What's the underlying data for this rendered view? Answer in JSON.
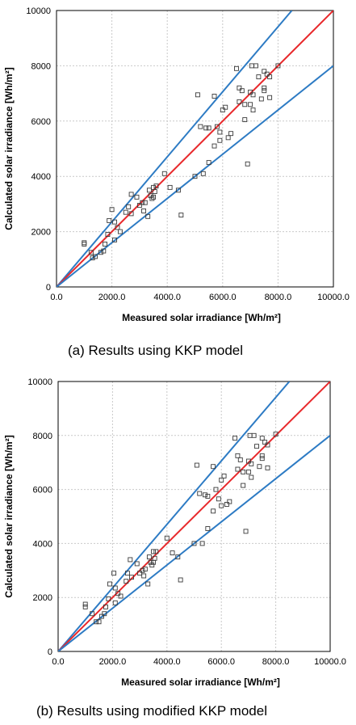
{
  "colors": {
    "red_line": "#e8282b",
    "blue_line": "#2d7bc4",
    "grid": "#c9c9c9",
    "marker": "#3a3a3a"
  },
  "chart_data": [
    {
      "type": "scatter",
      "title": "",
      "caption": "(a)  Results using KKP model",
      "xlabel": "Measured solar irradiance [Wh/m²]",
      "ylabel": "Calculated solar irradiance [Wh/m²]",
      "xlim": [
        0,
        10000
      ],
      "ylim": [
        0,
        10000
      ],
      "x_ticks": [
        "0.0",
        "2000.0",
        "4000.0",
        "6000.0",
        "8000.0",
        "10000.0"
      ],
      "y_ticks": [
        "0",
        "2000",
        "4000",
        "6000",
        "8000",
        "10000"
      ],
      "grid": true,
      "lines": [
        {
          "color": "blue",
          "points": [
            [
              0,
              0
            ],
            [
              8500,
              10000
            ]
          ]
        },
        {
          "color": "red",
          "points": [
            [
              0,
              0
            ],
            [
              10000,
              10000
            ]
          ]
        },
        {
          "color": "blue",
          "points": [
            [
              0,
              0
            ],
            [
              10000,
              8000
            ]
          ]
        }
      ],
      "points": [
        [
          1000,
          1600
        ],
        [
          1000,
          1550
        ],
        [
          1250,
          1250
        ],
        [
          1400,
          1100
        ],
        [
          1300,
          1050
        ],
        [
          1600,
          1250
        ],
        [
          1700,
          1300
        ],
        [
          1750,
          1550
        ],
        [
          1850,
          1900
        ],
        [
          1900,
          2400
        ],
        [
          2000,
          2800
        ],
        [
          2100,
          2350
        ],
        [
          2200,
          2150
        ],
        [
          2300,
          2000
        ],
        [
          2100,
          1700
        ],
        [
          2500,
          2700
        ],
        [
          2600,
          2900
        ],
        [
          2700,
          2650
        ],
        [
          2700,
          3350
        ],
        [
          2900,
          3250
        ],
        [
          3000,
          2950
        ],
        [
          3100,
          3050
        ],
        [
          3150,
          2750
        ],
        [
          3200,
          3050
        ],
        [
          3300,
          2550
        ],
        [
          3350,
          3500
        ],
        [
          3400,
          3300
        ],
        [
          3450,
          3200
        ],
        [
          3500,
          3600
        ],
        [
          3500,
          3250
        ],
        [
          3550,
          3450
        ],
        [
          3600,
          3650
        ],
        [
          3900,
          4100
        ],
        [
          4100,
          3600
        ],
        [
          4400,
          3500
        ],
        [
          4500,
          2600
        ],
        [
          5000,
          4000
        ],
        [
          5100,
          6950
        ],
        [
          5200,
          5800
        ],
        [
          5300,
          4100
        ],
        [
          5400,
          5750
        ],
        [
          5500,
          5750
        ],
        [
          5500,
          4500
        ],
        [
          5700,
          5100
        ],
        [
          5700,
          6900
        ],
        [
          5800,
          5800
        ],
        [
          5900,
          5600
        ],
        [
          5900,
          5300
        ],
        [
          6000,
          6400
        ],
        [
          6100,
          6500
        ],
        [
          6200,
          5400
        ],
        [
          6300,
          5550
        ],
        [
          6500,
          7900
        ],
        [
          6600,
          6700
        ],
        [
          6700,
          7100
        ],
        [
          6800,
          6600
        ],
        [
          6800,
          6050
        ],
        [
          6900,
          4450
        ],
        [
          7000,
          7050
        ],
        [
          7000,
          6600
        ],
        [
          7100,
          6950
        ],
        [
          7200,
          8000
        ],
        [
          7300,
          7600
        ],
        [
          7400,
          6800
        ],
        [
          7500,
          7200
        ],
        [
          7500,
          7100
        ],
        [
          7600,
          7700
        ],
        [
          7700,
          7600
        ],
        [
          7700,
          6850
        ],
        [
          7500,
          7800
        ],
        [
          8000,
          8000
        ],
        [
          7050,
          8000
        ],
        [
          6600,
          7200
        ],
        [
          7100,
          6400
        ]
      ]
    },
    {
      "type": "scatter",
      "title": "",
      "caption": "(b)  Results using modified KKP model",
      "xlabel": "Measured solar irradiance [Wh/m²]",
      "ylabel": "Calculated solar irradiance [Wh/m²]",
      "xlim": [
        0,
        10000
      ],
      "ylim": [
        0,
        10000
      ],
      "x_ticks": [
        "0.0",
        "2000.0",
        "4000.0",
        "6000.0",
        "8000.0",
        "10000.0"
      ],
      "y_ticks": [
        "0",
        "2000",
        "4000",
        "6000",
        "8000",
        "10000"
      ],
      "grid": true,
      "lines": [
        {
          "color": "blue",
          "points": [
            [
              0,
              0
            ],
            [
              8500,
              10000
            ]
          ]
        },
        {
          "color": "red",
          "points": [
            [
              0,
              0
            ],
            [
              10000,
              10000
            ]
          ]
        },
        {
          "color": "blue",
          "points": [
            [
              0,
              0
            ],
            [
              10000,
              8000
            ]
          ]
        }
      ],
      "points": [
        [
          1000,
          1750
        ],
        [
          1000,
          1650
        ],
        [
          1250,
          1400
        ],
        [
          1400,
          1100
        ],
        [
          1500,
          1100
        ],
        [
          1600,
          1300
        ],
        [
          1700,
          1400
        ],
        [
          1750,
          1650
        ],
        [
          1850,
          1950
        ],
        [
          1900,
          2500
        ],
        [
          2050,
          2900
        ],
        [
          2100,
          2350
        ],
        [
          2200,
          2150
        ],
        [
          2300,
          2050
        ],
        [
          2100,
          1800
        ],
        [
          2500,
          2600
        ],
        [
          2550,
          2900
        ],
        [
          2700,
          2750
        ],
        [
          2650,
          3400
        ],
        [
          2900,
          3250
        ],
        [
          3000,
          2900
        ],
        [
          3100,
          3000
        ],
        [
          3150,
          2800
        ],
        [
          3200,
          3050
        ],
        [
          3300,
          2500
        ],
        [
          3350,
          3500
        ],
        [
          3400,
          3300
        ],
        [
          3450,
          3200
        ],
        [
          3500,
          3700
        ],
        [
          3500,
          3300
        ],
        [
          3550,
          3450
        ],
        [
          3600,
          3700
        ],
        [
          4000,
          4200
        ],
        [
          4200,
          3650
        ],
        [
          4400,
          3500
        ],
        [
          4500,
          2650
        ],
        [
          5000,
          4000
        ],
        [
          5100,
          6900
        ],
        [
          5200,
          5850
        ],
        [
          5300,
          4000
        ],
        [
          5400,
          5800
        ],
        [
          5500,
          5750
        ],
        [
          5500,
          4550
        ],
        [
          5700,
          5200
        ],
        [
          5700,
          6850
        ],
        [
          5800,
          6000
        ],
        [
          5900,
          5650
        ],
        [
          6000,
          5400
        ],
        [
          6000,
          6350
        ],
        [
          6100,
          6500
        ],
        [
          6200,
          5450
        ],
        [
          6300,
          5550
        ],
        [
          6500,
          7900
        ],
        [
          6600,
          6750
        ],
        [
          6700,
          7100
        ],
        [
          6800,
          6650
        ],
        [
          6800,
          6150
        ],
        [
          6900,
          4450
        ],
        [
          7000,
          7050
        ],
        [
          7000,
          6650
        ],
        [
          7100,
          6950
        ],
        [
          7200,
          8000
        ],
        [
          7300,
          7600
        ],
        [
          7400,
          6850
        ],
        [
          7500,
          7250
        ],
        [
          7500,
          7150
        ],
        [
          7600,
          7750
        ],
        [
          7700,
          7650
        ],
        [
          7700,
          6800
        ],
        [
          7500,
          7900
        ],
        [
          8000,
          8050
        ],
        [
          7050,
          8000
        ],
        [
          6600,
          7250
        ],
        [
          7100,
          6450
        ]
      ]
    }
  ]
}
